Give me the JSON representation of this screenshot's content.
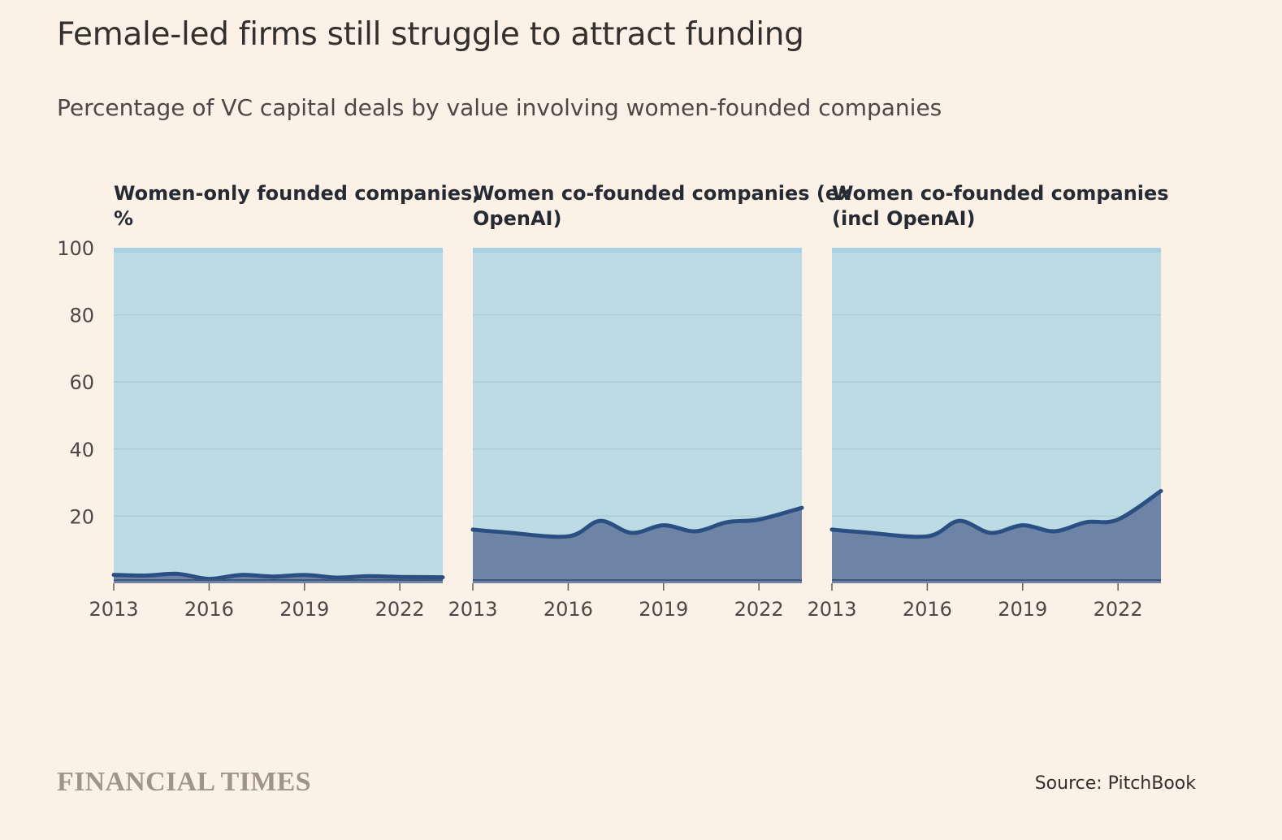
{
  "title": "Female-led firms still struggle to attract funding",
  "subtitle": "Percentage of VC capital deals by value involving women-founded companies",
  "source": "Source: PitchBook",
  "brand": "FINANCIAL TIMES",
  "colors": {
    "background": "#fcf1e7",
    "panel_fill": "#bddbe4",
    "panel_top": "#a7d1e3",
    "area_fill": "#6d84a6",
    "line": "#2c4f83",
    "grid": "#a9ccd8",
    "baseline": "#3d5679"
  },
  "chart_data": [
    {
      "type": "area",
      "title_lines": [
        "Women-only founded companies,",
        "%"
      ],
      "x": [
        2013,
        2014,
        2015,
        2016,
        2017,
        2018,
        2019,
        2020,
        2021,
        2022,
        2023
      ],
      "values": [
        2.5,
        2.3,
        2.8,
        1.3,
        2.5,
        2.0,
        2.5,
        1.7,
        2.1,
        1.9,
        1.8
      ],
      "ylim": [
        0,
        100
      ],
      "yticks": [
        20,
        40,
        60,
        80,
        100
      ],
      "xticks": [
        2013,
        2016,
        2019,
        2022
      ],
      "grid": true
    },
    {
      "type": "area",
      "title_lines": [
        "Women co-founded companies (ex",
        "OpenAI)"
      ],
      "x": [
        2013,
        2014,
        2015,
        2016,
        2017,
        2018,
        2019,
        2020,
        2021,
        2022,
        2023
      ],
      "values": [
        16.0,
        15.2,
        14.0,
        18.6,
        15.0,
        17.3,
        15.5,
        18.2,
        19.0,
        22.5
      ],
      "x_values": [
        2013,
        2014,
        2016,
        2017,
        2018,
        2019,
        2020,
        2021,
        2022,
        2023
      ],
      "ylim": [
        0,
        100
      ],
      "yticks": [
        20,
        40,
        60,
        80,
        100
      ],
      "xticks": [
        2013,
        2016,
        2019,
        2022
      ],
      "grid": true
    },
    {
      "type": "area",
      "title_lines": [
        "Women co-founded companies",
        "(incl OpenAI)"
      ],
      "x": [
        2013,
        2014,
        2015,
        2016,
        2017,
        2018,
        2019,
        2020,
        2021,
        2022,
        2023
      ],
      "values": [
        16.0,
        15.2,
        14.0,
        18.6,
        15.0,
        17.3,
        15.5,
        18.2,
        19.0,
        27.5
      ],
      "x_values": [
        2013,
        2014,
        2016,
        2017,
        2018,
        2019,
        2020,
        2021,
        2022,
        2023
      ],
      "ylim": [
        0,
        100
      ],
      "yticks": [
        20,
        40,
        60,
        80,
        100
      ],
      "xticks": [
        2013,
        2016,
        2019,
        2022
      ],
      "grid": true
    }
  ]
}
